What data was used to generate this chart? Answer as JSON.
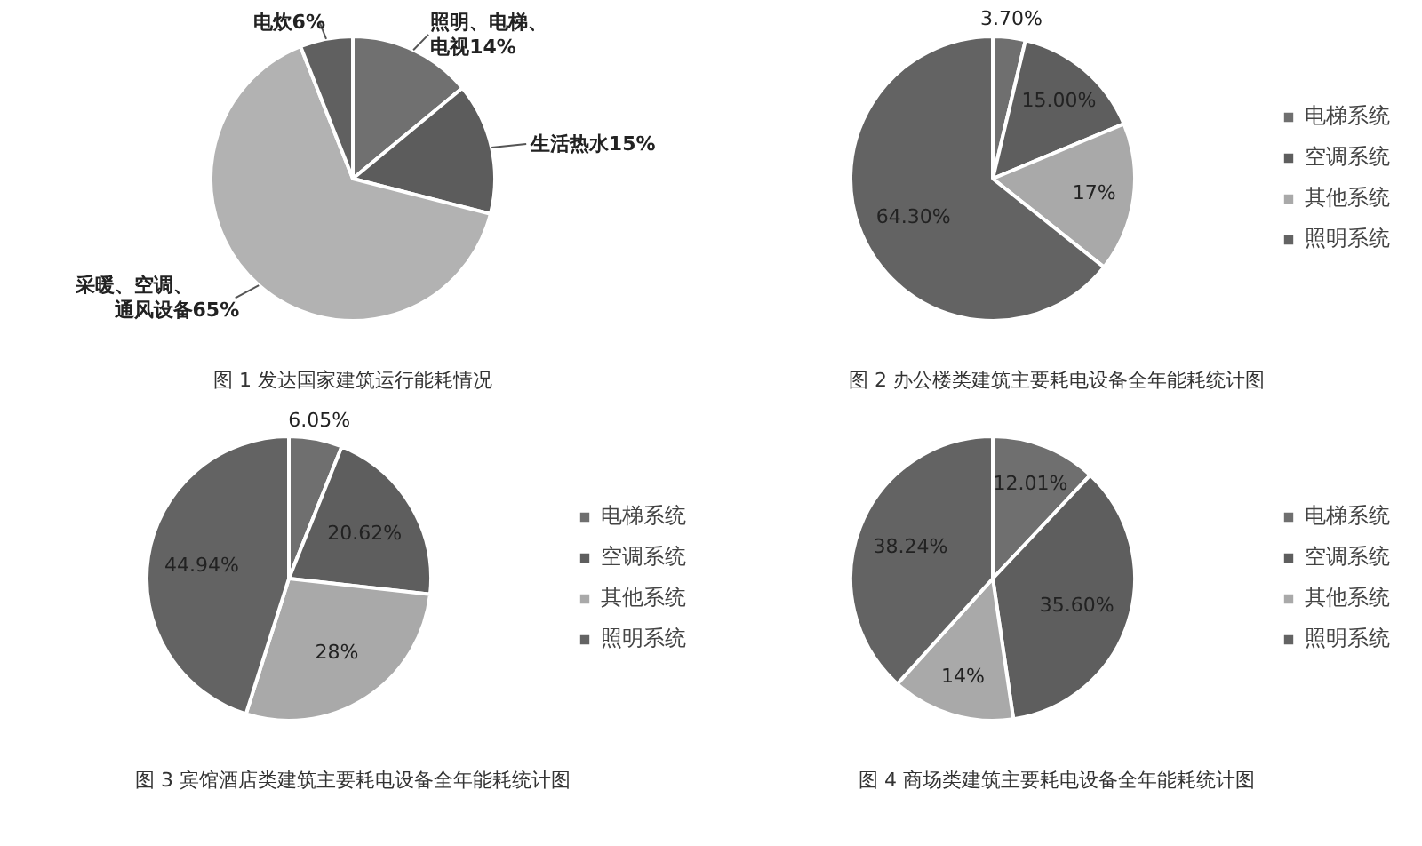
{
  "chart_data": [
    {
      "type": "pie",
      "title": "图 1 发达国家建筑运行能耗情况",
      "categories": [
        "照明、电梯、电视",
        "生活热水",
        "采暖、空调、通风设备",
        "电炊"
      ],
      "values": [
        14,
        15,
        65,
        6
      ],
      "value_labels": [
        "14%",
        "15%",
        "65%",
        "6%"
      ],
      "colors": [
        "#707070",
        "#5c5c5c",
        "#b2b2b2",
        "#606060"
      ],
      "legend": false
    },
    {
      "type": "pie",
      "title": "图 2 办公楼类建筑主要耗电设备全年能耗统计图",
      "categories": [
        "电梯系统",
        "空调系统",
        "其他系统",
        "照明系统"
      ],
      "values": [
        3.7,
        15.0,
        17,
        64.3
      ],
      "value_labels": [
        "3.70%",
        "15.00%",
        "17%",
        "64.30%"
      ],
      "colors": [
        "#6f6f6f",
        "#5e5e5e",
        "#a9a9a9",
        "#636363"
      ],
      "legend": "right"
    },
    {
      "type": "pie",
      "title": "图 3 宾馆酒店类建筑主要耗电设备全年能耗统计图",
      "categories": [
        "电梯系统",
        "空调系统",
        "其他系统",
        "照明系统"
      ],
      "values": [
        6.05,
        20.62,
        28,
        44.94
      ],
      "value_labels": [
        "6.05%",
        "20.62%",
        "28%",
        "44.94%"
      ],
      "colors": [
        "#6f6f6f",
        "#5e5e5e",
        "#a9a9a9",
        "#636363"
      ],
      "legend": "right"
    },
    {
      "type": "pie",
      "title": "图 4 商场类建筑主要耗电设备全年能耗统计图",
      "categories": [
        "电梯系统",
        "空调系统",
        "其他系统",
        "照明系统"
      ],
      "values": [
        12.01,
        35.6,
        14,
        38.24
      ],
      "value_labels": [
        "12.01%",
        "35.60%",
        "14%",
        "38.24%"
      ],
      "colors": [
        "#6f6f6f",
        "#5e5e5e",
        "#a9a9a9",
        "#636363"
      ],
      "legend": "right"
    }
  ]
}
